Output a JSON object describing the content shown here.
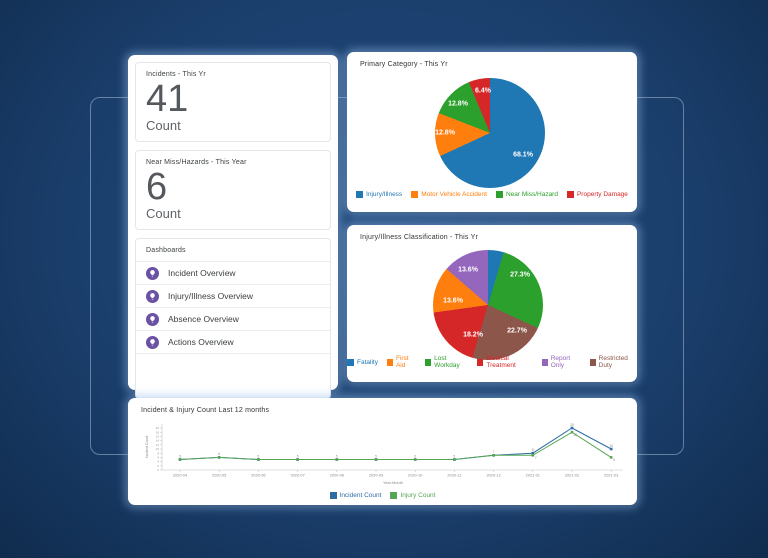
{
  "summary_panel": {
    "cards": [
      {
        "title": "Incidents - This Yr",
        "value": "41",
        "unit": "Count"
      },
      {
        "title": "Near Miss/Hazards - This Year",
        "value": "6",
        "unit": "Count"
      }
    ],
    "dashboards": {
      "title": "Dashboards",
      "icon_color": "#6a51a4",
      "items": [
        {
          "label": "Incident Overview"
        },
        {
          "label": "Injury/Illness Overview"
        },
        {
          "label": "Absence Overview"
        },
        {
          "label": "Actions Overview"
        }
      ]
    }
  },
  "chart_data": [
    {
      "type": "pie",
      "title": "Primary Category - This Yr",
      "legend_position": "bottom",
      "draw_order": [
        0,
        1,
        2,
        3
      ],
      "slices": [
        {
          "label": "Injury/Illness",
          "value": 68.1,
          "display": "68.1%",
          "color": "#1f77b4"
        },
        {
          "label": "Motor Vehicle Accident",
          "value": 12.8,
          "display": "12.8%",
          "color": "#ff7f0e"
        },
        {
          "label": "Near Miss/Hazard",
          "value": 12.8,
          "display": "12.8%",
          "color": "#2ca02c"
        },
        {
          "label": "Property Damage",
          "value": 6.4,
          "display": "6.4%",
          "color": "#d62728"
        }
      ]
    },
    {
      "type": "pie",
      "title": "Injury/Illness Classification - This Yr",
      "legend_position": "bottom",
      "draw_order": [
        0,
        2,
        5,
        3,
        1,
        4
      ],
      "slices": [
        {
          "label": "Fatality",
          "value": 4.6,
          "display": "",
          "color": "#1f77b4"
        },
        {
          "label": "First Aid",
          "value": 13.6,
          "display": "13.6%",
          "color": "#ff7f0e"
        },
        {
          "label": "Lost Workday",
          "value": 27.3,
          "display": "27.3%",
          "color": "#2ca02c"
        },
        {
          "label": "Medical Treatment",
          "value": 18.2,
          "display": "18.2%",
          "color": "#d62728"
        },
        {
          "label": "Report Only",
          "value": 13.6,
          "display": "13.6%",
          "color": "#9467bd"
        },
        {
          "label": "Restricted Duty",
          "value": 22.7,
          "display": "22.7%",
          "color": "#8c564b"
        }
      ]
    },
    {
      "type": "line",
      "title": "Incident & Injury Count Last 12 months",
      "xlabel": "Year-Month",
      "ylabel": "Incident Count",
      "ylim": [
        0,
        22
      ],
      "yticks": [
        0,
        2,
        4,
        6,
        8,
        10,
        12,
        14,
        16,
        18,
        20
      ],
      "grid": false,
      "legend_position": "bottom",
      "categories": [
        "2020-04",
        "2020-05",
        "2020-06",
        "2020-07",
        "2020-08",
        "2020-09",
        "2020-10",
        "2020-11",
        "2020-12",
        "2021-01",
        "2021-02",
        "2021-03"
      ],
      "series": [
        {
          "name": "Incident Count",
          "color": "#2e6da4",
          "values": [
            5,
            6,
            5,
            5,
            5,
            5,
            5,
            5,
            7,
            8,
            20,
            10
          ]
        },
        {
          "name": "Injury Count",
          "color": "#57a557",
          "values": [
            5,
            6,
            5,
            5,
            5,
            5,
            5,
            5,
            7,
            7,
            18,
            6
          ]
        }
      ]
    }
  ]
}
